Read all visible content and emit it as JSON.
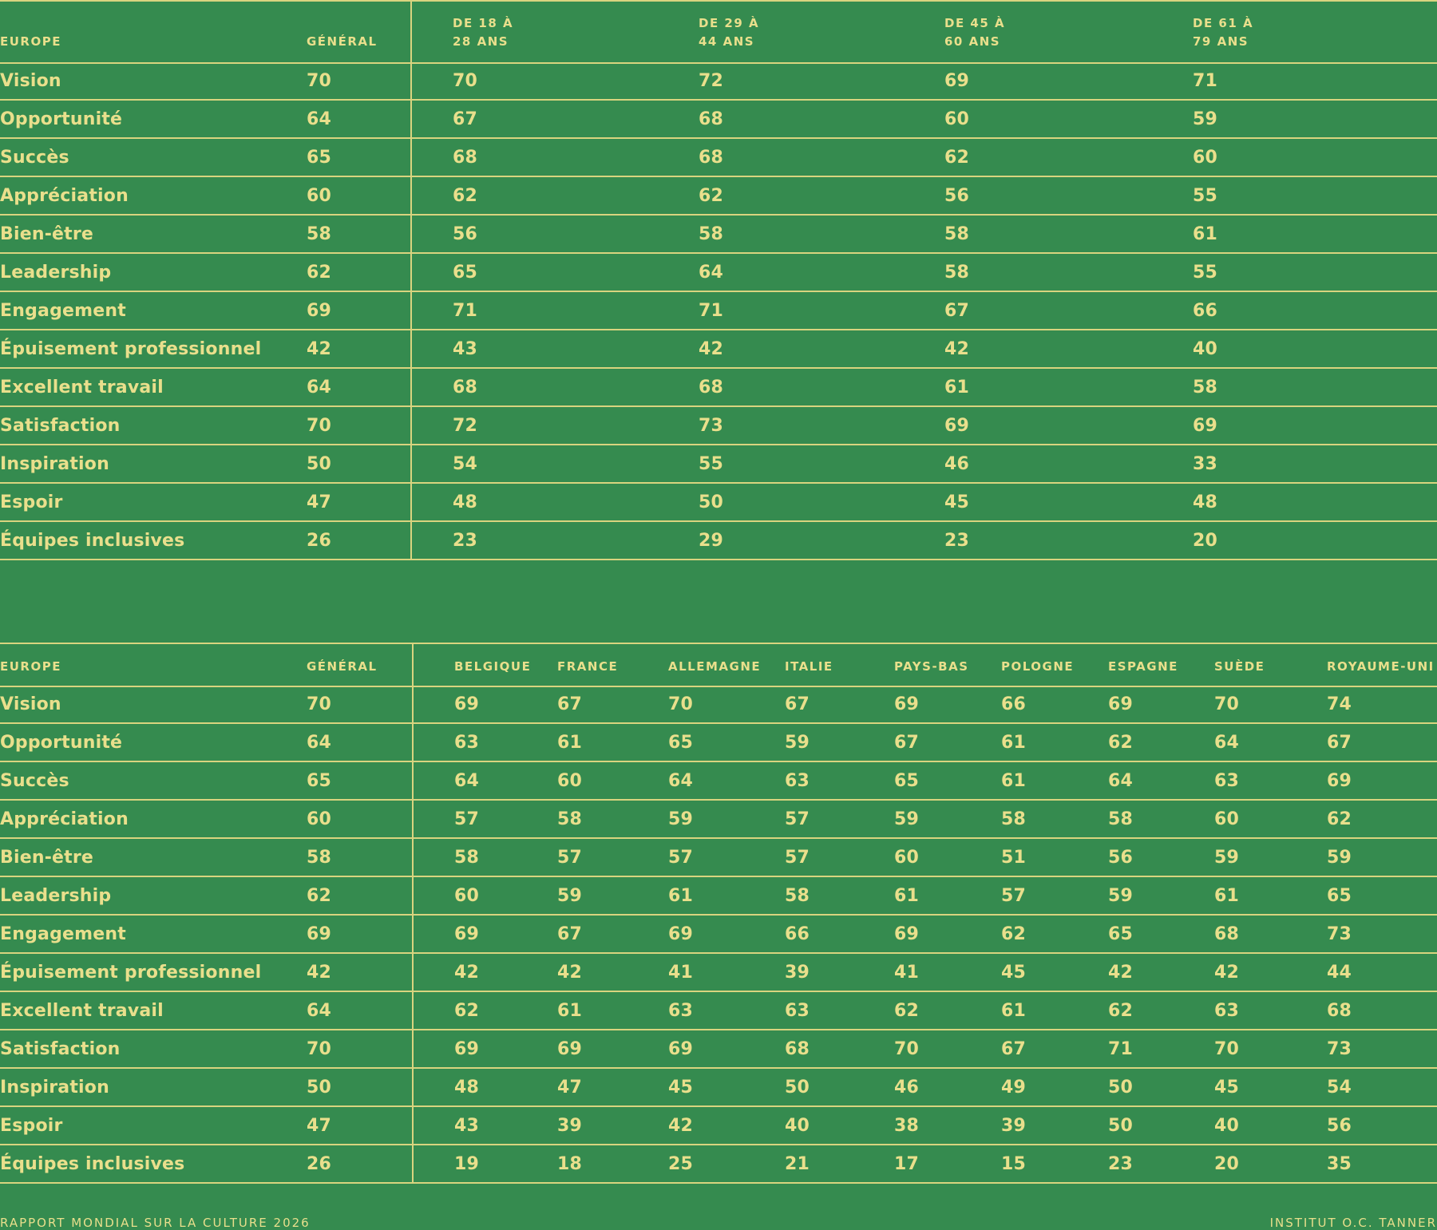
{
  "table1": {
    "headers": [
      "EUROPE",
      "GÉNÉRAL",
      "DE 18 À\n28 ANS",
      "DE 29 À\n44 ANS",
      "DE 45 À\n60 ANS",
      "DE 61 À\n79 ANS"
    ],
    "rows": [
      [
        "Vision",
        "70",
        "70",
        "72",
        "69",
        "71"
      ],
      [
        "Opportunité",
        "64",
        "67",
        "68",
        "60",
        "59"
      ],
      [
        "Succès",
        "65",
        "68",
        "68",
        "62",
        "60"
      ],
      [
        "Appréciation",
        "60",
        "62",
        "62",
        "56",
        "55"
      ],
      [
        "Bien-être",
        "58",
        "56",
        "58",
        "58",
        "61"
      ],
      [
        "Leadership",
        "62",
        "65",
        "64",
        "58",
        "55"
      ],
      [
        "Engagement",
        "69",
        "71",
        "71",
        "67",
        "66"
      ],
      [
        "Épuisement professionnel",
        "42",
        "43",
        "42",
        "42",
        "40"
      ],
      [
        "Excellent travail",
        "64",
        "68",
        "68",
        "61",
        "58"
      ],
      [
        "Satisfaction",
        "70",
        "72",
        "73",
        "69",
        "69"
      ],
      [
        "Inspiration",
        "50",
        "54",
        "55",
        "46",
        "33"
      ],
      [
        "Espoir",
        "47",
        "48",
        "50",
        "45",
        "48"
      ],
      [
        "Équipes inclusives",
        "26",
        "23",
        "29",
        "23",
        "20"
      ]
    ]
  },
  "table2": {
    "headers": [
      "EUROPE",
      "GÉNÉRAL",
      "BELGIQUE",
      "FRANCE",
      "ALLEMAGNE",
      "ITALIE",
      "PAYS-BAS",
      "POLOGNE",
      "ESPAGNE",
      "SUÈDE",
      "ROYAUME-UNI"
    ],
    "rows": [
      [
        "Vision",
        "70",
        "69",
        "67",
        "70",
        "67",
        "69",
        "66",
        "69",
        "70",
        "74"
      ],
      [
        "Opportunité",
        "64",
        "63",
        "61",
        "65",
        "59",
        "67",
        "61",
        "62",
        "64",
        "67"
      ],
      [
        "Succès",
        "65",
        "64",
        "60",
        "64",
        "63",
        "65",
        "61",
        "64",
        "63",
        "69"
      ],
      [
        "Appréciation",
        "60",
        "57",
        "58",
        "59",
        "57",
        "59",
        "58",
        "58",
        "60",
        "62"
      ],
      [
        "Bien-être",
        "58",
        "58",
        "57",
        "57",
        "57",
        "60",
        "51",
        "56",
        "59",
        "59"
      ],
      [
        "Leadership",
        "62",
        "60",
        "59",
        "61",
        "58",
        "61",
        "57",
        "59",
        "61",
        "65"
      ],
      [
        "Engagement",
        "69",
        "69",
        "67",
        "69",
        "66",
        "69",
        "62",
        "65",
        "68",
        "73"
      ],
      [
        "Épuisement professionnel",
        "42",
        "42",
        "42",
        "41",
        "39",
        "41",
        "45",
        "42",
        "42",
        "44"
      ],
      [
        "Excellent travail",
        "64",
        "62",
        "61",
        "63",
        "63",
        "62",
        "61",
        "62",
        "63",
        "68"
      ],
      [
        "Satisfaction",
        "70",
        "69",
        "69",
        "69",
        "68",
        "70",
        "67",
        "71",
        "70",
        "73"
      ],
      [
        "Inspiration",
        "50",
        "48",
        "47",
        "45",
        "50",
        "46",
        "49",
        "50",
        "45",
        "54"
      ],
      [
        "Espoir",
        "47",
        "43",
        "39",
        "42",
        "40",
        "38",
        "39",
        "50",
        "40",
        "56"
      ],
      [
        "Équipes inclusives",
        "26",
        "19",
        "18",
        "25",
        "21",
        "17",
        "15",
        "23",
        "20",
        "35"
      ]
    ]
  },
  "footer": {
    "left": "RAPPORT MONDIAL SUR LA CULTURE 2026",
    "right": "INSTITUT O.C. TANNER"
  }
}
